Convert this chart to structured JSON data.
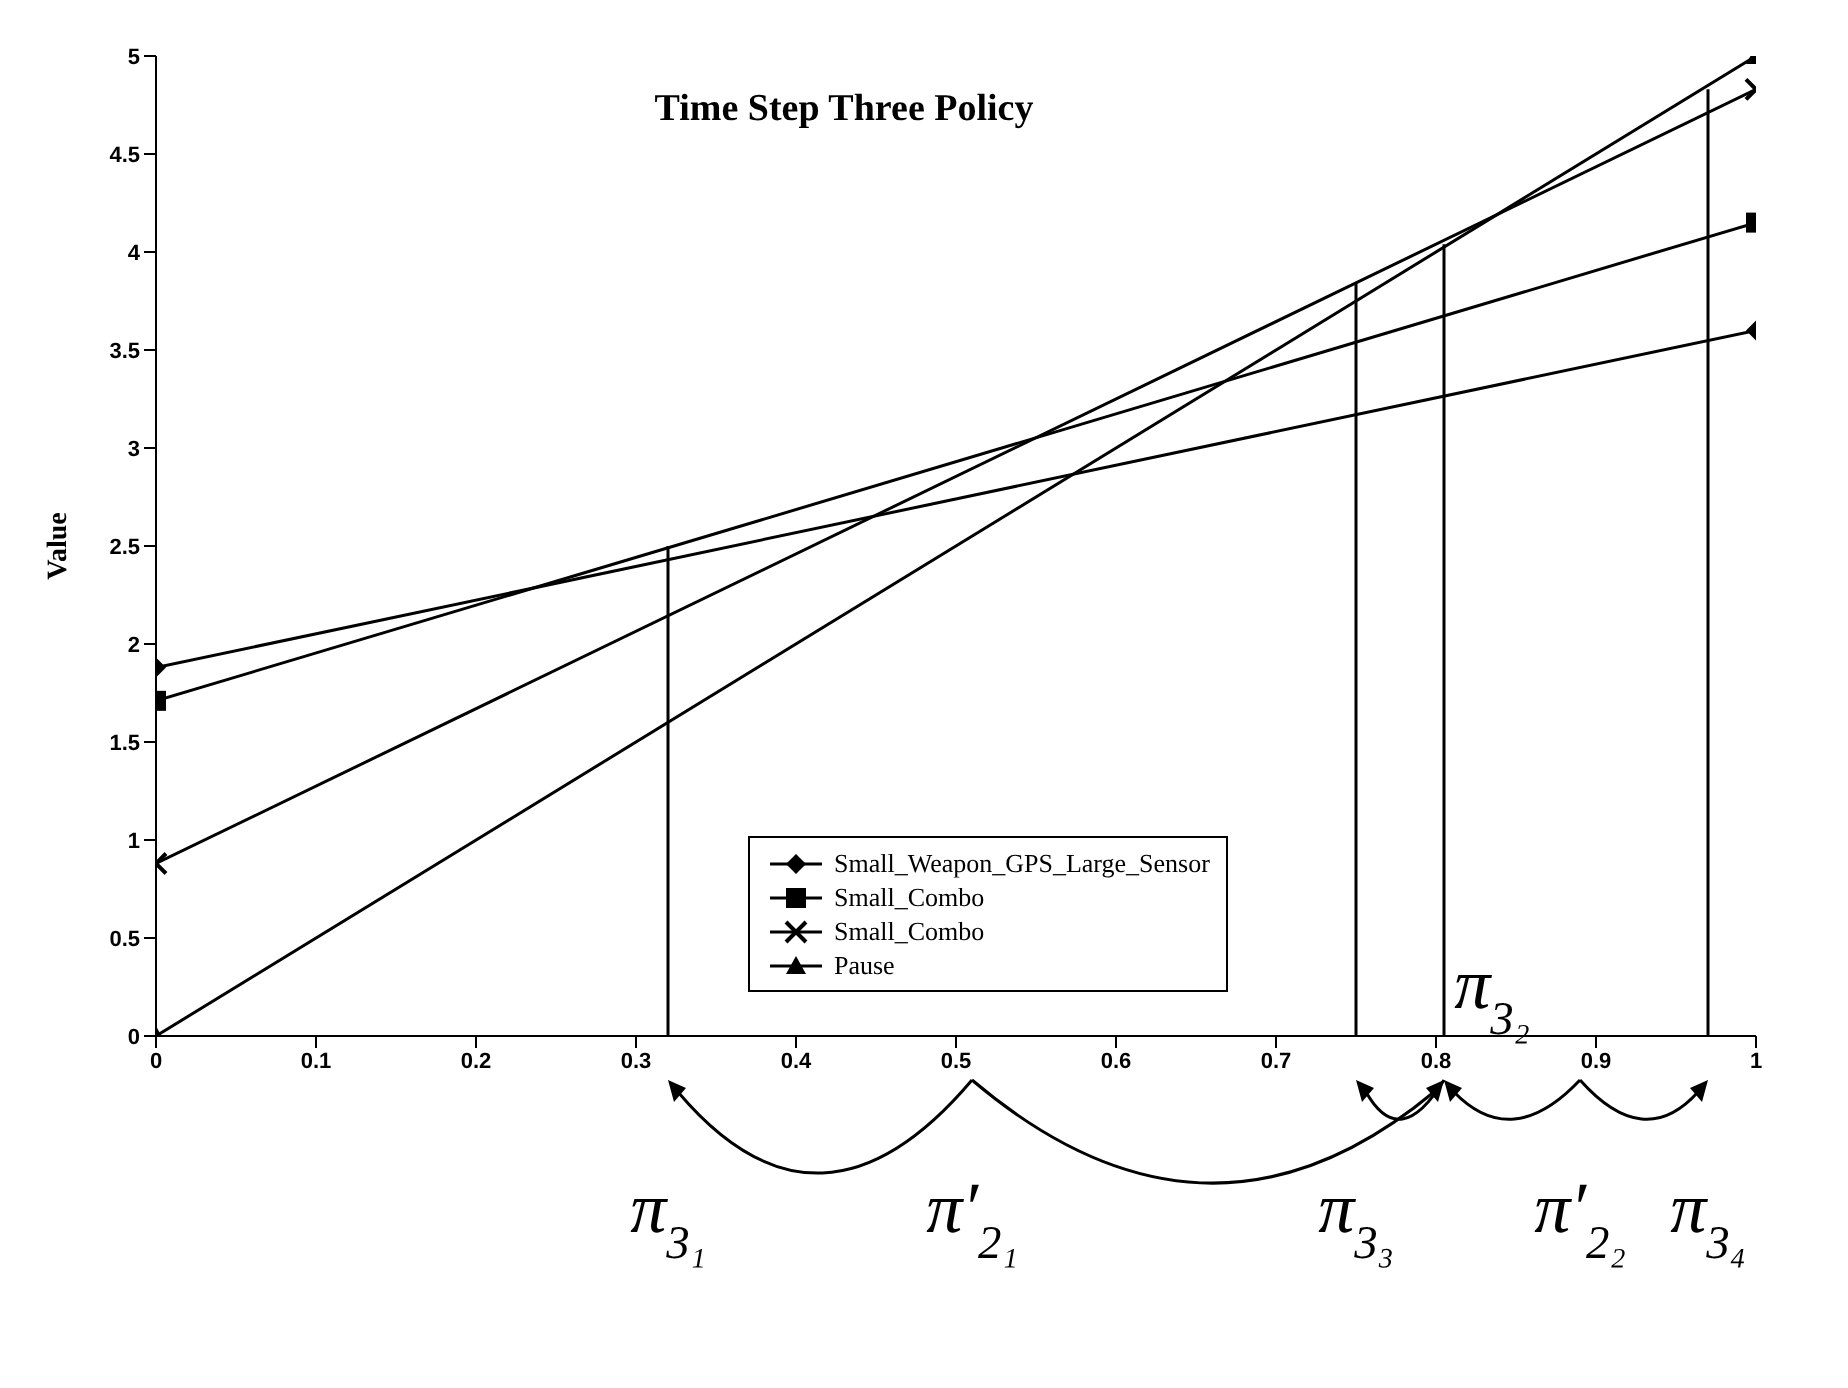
{
  "chart_data": {
    "type": "line",
    "title": "Time Step Three Policy",
    "ylabel": "Value",
    "x": [
      0,
      1
    ],
    "xlim": [
      0,
      1
    ],
    "xticks": [
      0,
      0.1,
      0.2,
      0.3,
      0.4,
      0.5,
      0.6,
      0.7,
      0.8,
      0.9,
      1
    ],
    "ylim": [
      0,
      5
    ],
    "yticks": [
      0,
      0.5,
      1,
      1.5,
      2,
      2.5,
      3,
      3.5,
      4,
      4.5,
      5
    ],
    "series": [
      {
        "name": "Small_Weapon_GPS_Large_Sensor",
        "color": "#000000",
        "marker": "diamond",
        "values": [
          1.88,
          3.6
        ]
      },
      {
        "name": "Small_Combo",
        "color": "#000000",
        "marker": "square",
        "values": [
          1.71,
          4.15
        ]
      },
      {
        "name": "Small_Combo",
        "color": "#000000",
        "marker": "cross",
        "values": [
          0.88,
          4.83
        ]
      },
      {
        "name": "Pause",
        "color": "#000000",
        "marker": "triangle",
        "values": [
          0,
          5
        ]
      },
      {
        "color": "#000000",
        "marker": "none",
        "x": [
          0.32,
          0.32
        ],
        "values": [
          0,
          2.5
        ]
      },
      {
        "color": "#000000",
        "marker": "none",
        "x": [
          0.75,
          0.75
        ],
        "values": [
          0,
          3.84
        ]
      },
      {
        "color": "#000000",
        "marker": "none",
        "x": [
          0.805,
          0.805
        ],
        "values": [
          0,
          4.04
        ]
      },
      {
        "color": "#000000",
        "marker": "none",
        "x": [
          0.97,
          0.97
        ],
        "values": [
          0,
          4.83
        ]
      }
    ],
    "annotations": [
      "π$_{3₁}$",
      "π′$_{2₁}$",
      "π$_{3₃}$",
      "π$_{3₂}$",
      "π′$_{2₂}$",
      "π$_{3₄}$"
    ],
    "legend": "bottom",
    "grid": false,
    "line_style": "solid"
  }
}
